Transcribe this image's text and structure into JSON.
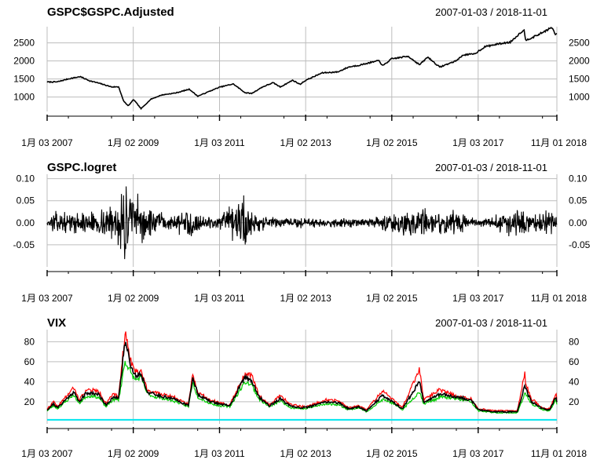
{
  "chart_data": [
    {
      "type": "line",
      "title": "GSPC$GSPC.Adjusted",
      "range_label": "2007-01-03 / 2018-11-01",
      "x_tick_labels": [
        "1月 03 2007",
        "1月 02 2009",
        "1月 03 2011",
        "1月 02 2013",
        "1月 02 2015",
        "1月 03 2017",
        "11月 01 2018"
      ],
      "x_ticks": [
        "2007-01-03",
        "2009-01-02",
        "2011-01-03",
        "2013-01-02",
        "2015-01-02",
        "2017-01-03",
        "2018-11-01"
      ],
      "y_ticks": [
        1000,
        1500,
        2000,
        2500
      ],
      "y_tick_labels": [
        "1000",
        "1500",
        "2000",
        "2500"
      ],
      "ylim": [
        600,
        2950
      ],
      "grid": true,
      "series": [
        {
          "color": "#000000",
          "x": [
            "2007-01-03",
            "2007-04-01",
            "2007-07-01",
            "2007-10-09",
            "2008-01-01",
            "2008-04-01",
            "2008-07-01",
            "2008-09-01",
            "2008-10-10",
            "2008-11-20",
            "2009-01-05",
            "2009-03-09",
            "2009-06-01",
            "2009-09-01",
            "2010-01-01",
            "2010-04-23",
            "2010-07-02",
            "2010-10-01",
            "2011-01-01",
            "2011-04-29",
            "2011-08-08",
            "2011-10-03",
            "2012-01-01",
            "2012-04-01",
            "2012-06-01",
            "2012-09-14",
            "2012-11-15",
            "2013-01-02",
            "2013-05-21",
            "2013-10-01",
            "2014-01-01",
            "2014-04-01",
            "2014-09-18",
            "2014-10-15",
            "2015-01-01",
            "2015-05-21",
            "2015-08-25",
            "2015-11-03",
            "2016-02-11",
            "2016-06-27",
            "2016-09-01",
            "2016-12-01",
            "2017-03-01",
            "2017-07-01",
            "2017-10-01",
            "2018-01-26",
            "2018-02-08",
            "2018-04-01",
            "2018-06-01",
            "2018-09-20",
            "2018-10-15",
            "2018-11-01"
          ],
          "values": [
            1416,
            1420,
            1503,
            1565,
            1447,
            1370,
            1280,
            1282,
            899,
            752,
            931,
            676,
            942,
            1057,
            1115,
            1217,
            1022,
            1146,
            1271,
            1363,
            1119,
            1099,
            1277,
            1397,
            1278,
            1465,
            1353,
            1462,
            1669,
            1695,
            1831,
            1883,
            2011,
            1862,
            2058,
            2131,
            1893,
            2109,
            1829,
            2000,
            2170,
            2191,
            2395,
            2477,
            2519,
            2872,
            2581,
            2640,
            2735,
            2930,
            2750,
            2740
          ]
        }
      ]
    },
    {
      "type": "line",
      "title": "GSPC.logret",
      "range_label": "2007-01-03 / 2018-11-01",
      "x_tick_labels": [
        "1月 03 2007",
        "1月 02 2009",
        "1月 03 2011",
        "1月 02 2013",
        "1月 02 2015",
        "1月 03 2017",
        "11月 01 2018"
      ],
      "x_ticks": [
        "2007-01-03",
        "2009-01-02",
        "2011-01-03",
        "2013-01-02",
        "2015-01-02",
        "2017-01-03",
        "2018-11-01"
      ],
      "y_ticks": [
        -0.05,
        0.0,
        0.05,
        0.1
      ],
      "y_tick_labels": [
        "-0.05",
        "0.00",
        "0.05",
        "0.10"
      ],
      "ylim": [
        -0.1,
        0.11
      ],
      "grid": true,
      "series": [
        {
          "color": "#000000",
          "volatility_x": [
            "2007-01-03",
            "2007-02-27",
            "2007-08-01",
            "2008-01-15",
            "2008-09-15",
            "2008-10-15",
            "2008-12-01",
            "2009-03-01",
            "2009-06-01",
            "2010-01-01",
            "2010-05-06",
            "2010-07-01",
            "2011-01-01",
            "2011-08-08",
            "2011-11-01",
            "2012-03-01",
            "2013-01-01",
            "2014-06-01",
            "2015-08-24",
            "2016-01-01",
            "2016-06-24",
            "2017-01-01",
            "2018-02-05",
            "2018-04-01",
            "2018-10-10",
            "2018-11-01"
          ],
          "volatility": [
            0.004,
            0.018,
            0.015,
            0.02,
            0.035,
            0.09,
            0.06,
            0.04,
            0.022,
            0.012,
            0.03,
            0.015,
            0.01,
            0.05,
            0.02,
            0.01,
            0.008,
            0.007,
            0.03,
            0.015,
            0.025,
            0.005,
            0.03,
            0.015,
            0.025,
            0.018
          ]
        }
      ]
    },
    {
      "type": "line",
      "title": "VIX",
      "range_label": "2007-01-03 / 2018-11-01",
      "x_tick_labels": [
        "1月 03 2007",
        "1月 02 2009",
        "1月 03 2011",
        "1月 02 2013",
        "1月 02 2015",
        "1月 03 2017",
        "11月 01 2018"
      ],
      "x_ticks": [
        "2007-01-03",
        "2009-01-02",
        "2011-01-03",
        "2013-01-02",
        "2015-01-02",
        "2017-01-03",
        "2018-11-01"
      ],
      "y_ticks": [
        20,
        40,
        60,
        80
      ],
      "y_tick_labels": [
        "20",
        "40",
        "60",
        "80"
      ],
      "ylim": [
        -2,
        92
      ],
      "grid": true,
      "series": [
        {
          "color": "#000000",
          "x": [
            "2007-01-03",
            "2007-02-27",
            "2007-04-01",
            "2007-08-16",
            "2007-10-01",
            "2007-11-26",
            "2008-01-22",
            "2008-03-17",
            "2008-05-15",
            "2008-07-15",
            "2008-09-01",
            "2008-10-24",
            "2008-11-20",
            "2008-12-15",
            "2009-01-20",
            "2009-03-09",
            "2009-05-01",
            "2009-07-01",
            "2009-10-01",
            "2010-01-01",
            "2010-04-15",
            "2010-05-20",
            "2010-07-01",
            "2010-10-01",
            "2011-01-01",
            "2011-04-01",
            "2011-08-08",
            "2011-10-03",
            "2011-12-01",
            "2012-03-01",
            "2012-06-01",
            "2012-09-01",
            "2013-01-02",
            "2013-06-24",
            "2013-10-08",
            "2014-01-01",
            "2014-04-01",
            "2014-06-01",
            "2014-10-15",
            "2014-12-16",
            "2015-04-01",
            "2015-08-24",
            "2015-10-01",
            "2016-01-20",
            "2016-02-11",
            "2016-06-27",
            "2016-11-04",
            "2017-01-01",
            "2017-06-01",
            "2017-12-01",
            "2018-02-05",
            "2018-02-08",
            "2018-04-01",
            "2018-07-01",
            "2018-09-01",
            "2018-10-24",
            "2018-11-01"
          ],
          "values": [
            12,
            18,
            14,
            30,
            20,
            28,
            29,
            27,
            17,
            24,
            24,
            80,
            70,
            55,
            46,
            48,
            30,
            27,
            25,
            22,
            16,
            45,
            28,
            21,
            18,
            16,
            45,
            41,
            25,
            16,
            23,
            15,
            14,
            20,
            19,
            13,
            15,
            11,
            26,
            22,
            13,
            40,
            20,
            26,
            28,
            25,
            22,
            12,
            10,
            10,
            37,
            33,
            20,
            13,
            12,
            25,
            20
          ]
        },
        {
          "color": "#ff0000",
          "x": [
            "2007-01-03",
            "2007-02-27",
            "2007-04-01",
            "2007-08-16",
            "2007-10-01",
            "2007-11-26",
            "2008-01-22",
            "2008-03-17",
            "2008-05-15",
            "2008-07-15",
            "2008-09-01",
            "2008-10-24",
            "2008-11-20",
            "2008-12-15",
            "2009-01-20",
            "2009-03-09",
            "2009-05-01",
            "2009-07-01",
            "2009-10-01",
            "2010-01-01",
            "2010-04-15",
            "2010-05-20",
            "2010-07-01",
            "2010-10-01",
            "2011-01-01",
            "2011-04-01",
            "2011-08-08",
            "2011-10-03",
            "2011-12-01",
            "2012-03-01",
            "2012-06-01",
            "2012-09-01",
            "2013-01-02",
            "2013-06-24",
            "2013-10-08",
            "2014-01-01",
            "2014-04-01",
            "2014-06-01",
            "2014-10-15",
            "2014-12-16",
            "2015-04-01",
            "2015-08-24",
            "2015-10-01",
            "2016-01-20",
            "2016-02-11",
            "2016-06-27",
            "2016-11-04",
            "2017-01-01",
            "2017-06-01",
            "2017-12-01",
            "2018-02-05",
            "2018-02-08",
            "2018-04-01",
            "2018-07-01",
            "2018-09-01",
            "2018-10-24",
            "2018-11-01"
          ],
          "values": [
            13,
            20,
            15,
            34,
            22,
            31,
            32,
            30,
            19,
            27,
            26,
            89,
            75,
            60,
            50,
            51,
            32,
            29,
            27,
            24,
            18,
            48,
            30,
            23,
            19,
            17,
            48,
            46,
            27,
            17,
            26,
            17,
            15,
            22,
            21,
            14,
            16,
            12,
            31,
            25,
            14,
            53,
            22,
            30,
            32,
            26,
            23,
            13,
            11,
            11,
            50,
            38,
            23,
            14,
            13,
            28,
            22
          ]
        },
        {
          "color": "#00cc00",
          "x": [
            "2007-01-03",
            "2007-02-27",
            "2007-04-01",
            "2007-08-16",
            "2007-10-01",
            "2007-11-26",
            "2008-01-22",
            "2008-03-17",
            "2008-05-15",
            "2008-07-15",
            "2008-09-01",
            "2008-10-24",
            "2008-11-20",
            "2008-12-15",
            "2009-01-20",
            "2009-03-09",
            "2009-05-01",
            "2009-07-01",
            "2009-10-01",
            "2010-01-01",
            "2010-04-15",
            "2010-05-20",
            "2010-07-01",
            "2010-10-01",
            "2011-01-01",
            "2011-04-01",
            "2011-08-08",
            "2011-10-03",
            "2011-12-01",
            "2012-03-01",
            "2012-06-01",
            "2012-09-01",
            "2013-01-02",
            "2013-06-24",
            "2013-10-08",
            "2014-01-01",
            "2014-04-01",
            "2014-06-01",
            "2014-10-15",
            "2014-12-16",
            "2015-04-01",
            "2015-08-24",
            "2015-10-01",
            "2016-01-20",
            "2016-02-11",
            "2016-06-27",
            "2016-11-04",
            "2017-01-01",
            "2017-06-01",
            "2017-12-01",
            "2018-02-05",
            "2018-02-08",
            "2018-04-01",
            "2018-07-01",
            "2018-09-01",
            "2018-10-24",
            "2018-11-01"
          ],
          "values": [
            11,
            16,
            13,
            27,
            18,
            25,
            26,
            24,
            15,
            22,
            22,
            60,
            55,
            48,
            42,
            44,
            28,
            25,
            23,
            20,
            15,
            40,
            25,
            19,
            16,
            15,
            40,
            37,
            23,
            15,
            21,
            14,
            13,
            18,
            17,
            12,
            14,
            10,
            22,
            20,
            12,
            30,
            18,
            23,
            25,
            23,
            20,
            11,
            9,
            9,
            28,
            28,
            18,
            12,
            11,
            22,
            18
          ]
        },
        {
          "color": "#00e5ee",
          "x": [
            "2007-01-03",
            "2018-11-01"
          ],
          "values": [
            2,
            2
          ]
        }
      ]
    }
  ]
}
